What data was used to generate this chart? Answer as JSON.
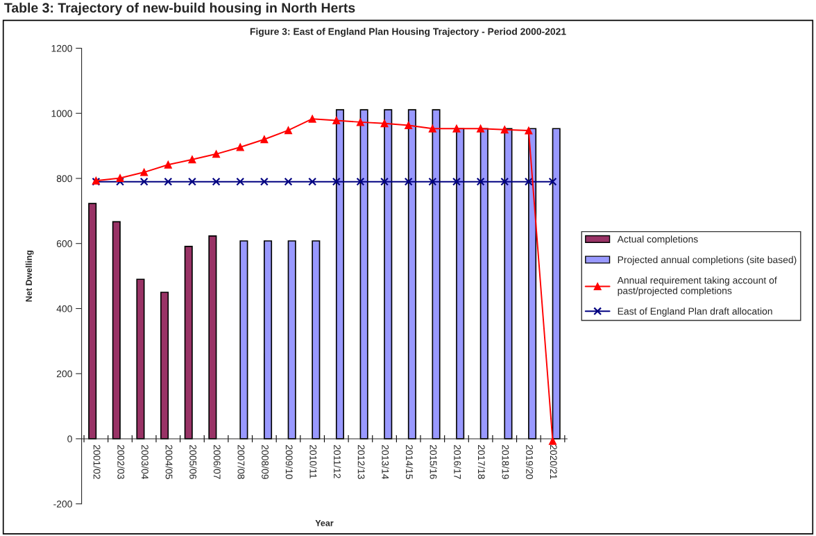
{
  "chart_data": {
    "type": "bar",
    "title": "Figure 3: East of England Plan Housing Trajectory - Period 2000-2021",
    "annotations": [
      "Table 3: Trajectory of new-build housing in North Herts"
    ],
    "xlabel": "Year",
    "ylabel": "Net Dwelling",
    "categories": [
      "2001/02",
      "2002/03",
      "2003/04",
      "2004/05",
      "2005/06",
      "2006/07",
      "2007/08",
      "2008/09",
      "2009/10",
      "2010/11",
      "2011/12",
      "2012/13",
      "2013/14",
      "2014/15",
      "2015/16",
      "2016/17",
      "2017/18",
      "2018/19",
      "2019/20",
      "2020/21"
    ],
    "series": [
      {
        "name": "Actual completions",
        "type": "bar",
        "color": "#993366",
        "values": [
          723,
          667,
          490,
          450,
          591,
          623,
          null,
          null,
          null,
          null,
          null,
          null,
          null,
          null,
          null,
          null,
          null,
          null,
          null,
          null
        ]
      },
      {
        "name": "Projected annual completions (site based)",
        "type": "bar",
        "color": "#9999ff",
        "values": [
          null,
          null,
          null,
          null,
          null,
          null,
          608,
          608,
          608,
          608,
          1011,
          1011,
          1011,
          1011,
          1011,
          953,
          953,
          953,
          953,
          953
        ]
      },
      {
        "name": "Annual requirement taking account of\npast/projected completions",
        "type": "line",
        "marker": "triangle",
        "color": "#ff0000",
        "values": [
          793,
          801,
          819,
          842,
          858,
          875,
          896,
          920,
          948,
          983,
          978,
          973,
          969,
          963,
          953,
          953,
          953,
          950,
          947,
          -7
        ]
      },
      {
        "name": "East of England Plan draft allocation",
        "type": "line",
        "marker": "cross",
        "color": "#000080",
        "values": [
          790,
          790,
          790,
          790,
          790,
          790,
          790,
          790,
          790,
          790,
          790,
          790,
          790,
          790,
          790,
          790,
          790,
          790,
          790,
          790
        ]
      }
    ],
    "ylim": [
      -200,
      1200
    ],
    "yticks": [
      -200,
      0,
      200,
      400,
      600,
      800,
      1000,
      1200
    ],
    "grid": false,
    "legend": "right"
  }
}
